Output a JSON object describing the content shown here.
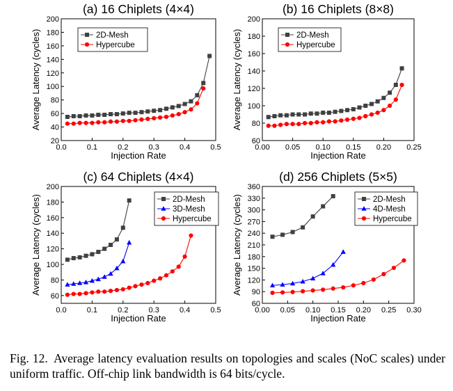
{
  "caption": {
    "label": "Fig. 12.",
    "text": "Average latency evaluation results on topologies and scales (NoC scales) under uniform traffic. Off-chip link bandwidth is 64 bits/cycle."
  },
  "chart_data": [
    {
      "type": "line",
      "title": "(a) 16 Chiplets (4×4)",
      "xlabel": "Injection Rate",
      "ylabel": "Average Latency (cycles)",
      "xlim": [
        0.0,
        0.5
      ],
      "ylim": [
        20,
        200
      ],
      "xticks": [
        0.0,
        0.1,
        0.2,
        0.3,
        0.4,
        0.5
      ],
      "xtick_labels": [
        "0.0",
        "0.1",
        "0.2",
        "0.3",
        "0.4",
        "0.5"
      ],
      "yticks": [
        20,
        40,
        60,
        80,
        100,
        120,
        140,
        160,
        180,
        200
      ],
      "ytick_labels": [
        "20",
        "40",
        "60",
        "80",
        "100",
        "120",
        "140",
        "160",
        "180",
        "200"
      ],
      "legend_position": "upper-left",
      "grid": false,
      "series": [
        {
          "name": "2D-Mesh",
          "color": "#404040",
          "marker": "square",
          "x": [
            0.02,
            0.04,
            0.06,
            0.08,
            0.1,
            0.12,
            0.14,
            0.16,
            0.18,
            0.2,
            0.22,
            0.24,
            0.26,
            0.28,
            0.3,
            0.32,
            0.34,
            0.36,
            0.38,
            0.4,
            0.42,
            0.44,
            0.46,
            0.48
          ],
          "y": [
            55,
            56,
            56,
            57,
            57,
            58,
            58,
            59,
            59,
            60,
            61,
            61,
            62,
            63,
            64,
            65,
            67,
            69,
            71,
            74,
            78,
            87,
            105,
            145
          ]
        },
        {
          "name": "Hypercube",
          "color": "#ff0000",
          "marker": "circle",
          "x": [
            0.02,
            0.04,
            0.06,
            0.08,
            0.1,
            0.12,
            0.14,
            0.16,
            0.18,
            0.2,
            0.22,
            0.24,
            0.26,
            0.28,
            0.3,
            0.32,
            0.34,
            0.36,
            0.38,
            0.4,
            0.42,
            0.44,
            0.46
          ],
          "y": [
            45,
            45,
            46,
            46,
            46,
            47,
            47,
            48,
            48,
            49,
            49,
            50,
            51,
            52,
            53,
            54,
            55,
            57,
            59,
            62,
            66,
            75,
            97
          ]
        }
      ]
    },
    {
      "type": "line",
      "title": "(b) 16 Chiplets (8×8)",
      "xlabel": "Injection Rate",
      "ylabel": "Average Latency (cycles)",
      "xlim": [
        0.0,
        0.25
      ],
      "ylim": [
        60,
        200
      ],
      "xticks": [
        0.0,
        0.05,
        0.1,
        0.15,
        0.2,
        0.25
      ],
      "xtick_labels": [
        "0.00",
        "0.05",
        "0.10",
        "0.15",
        "0.20",
        "0.25"
      ],
      "yticks": [
        60,
        80,
        100,
        120,
        140,
        160,
        180,
        200
      ],
      "ytick_labels": [
        "60",
        "80",
        "100",
        "120",
        "140",
        "160",
        "180",
        "200"
      ],
      "legend_position": "upper-left",
      "grid": false,
      "series": [
        {
          "name": "2D-Mesh",
          "color": "#404040",
          "marker": "square",
          "x": [
            0.01,
            0.02,
            0.03,
            0.04,
            0.05,
            0.06,
            0.07,
            0.08,
            0.09,
            0.1,
            0.11,
            0.12,
            0.13,
            0.14,
            0.15,
            0.16,
            0.17,
            0.18,
            0.19,
            0.2,
            0.21,
            0.22,
            0.23
          ],
          "y": [
            87,
            88,
            89,
            89,
            90,
            90,
            90,
            91,
            91,
            92,
            92,
            93,
            94,
            95,
            96,
            98,
            100,
            102,
            105,
            109,
            115,
            124,
            143
          ]
        },
        {
          "name": "Hypercube",
          "color": "#ff0000",
          "marker": "circle",
          "x": [
            0.01,
            0.02,
            0.03,
            0.04,
            0.05,
            0.06,
            0.07,
            0.08,
            0.09,
            0.1,
            0.11,
            0.12,
            0.13,
            0.14,
            0.15,
            0.16,
            0.17,
            0.18,
            0.19,
            0.2,
            0.21,
            0.22,
            0.23
          ],
          "y": [
            77,
            77,
            78,
            79,
            79,
            79,
            80,
            80,
            81,
            81,
            82,
            82,
            83,
            84,
            85,
            86,
            88,
            90,
            92,
            95,
            100,
            107,
            124
          ]
        }
      ]
    },
    {
      "type": "line",
      "title": "(c) 64 Chiplets (4×4)",
      "xlabel": "Injection Rate",
      "ylabel": "Average Latency (cycles)",
      "xlim": [
        0.0,
        0.5
      ],
      "ylim": [
        50,
        200
      ],
      "xticks": [
        0.0,
        0.1,
        0.2,
        0.3,
        0.4,
        0.5
      ],
      "xtick_labels": [
        "0.0",
        "0.1",
        "0.2",
        "0.3",
        "0.4",
        "0.5"
      ],
      "yticks": [
        60,
        80,
        100,
        120,
        140,
        160,
        180,
        200
      ],
      "ytick_labels": [
        "60",
        "80",
        "100",
        "120",
        "140",
        "160",
        "180",
        "200"
      ],
      "legend_position": "upper-right",
      "grid": false,
      "series": [
        {
          "name": "2D-Mesh",
          "color": "#404040",
          "marker": "square",
          "x": [
            0.02,
            0.04,
            0.06,
            0.08,
            0.1,
            0.12,
            0.14,
            0.16,
            0.18,
            0.2,
            0.22
          ],
          "y": [
            106,
            108,
            109,
            111,
            113,
            116,
            120,
            125,
            132,
            147,
            182
          ]
        },
        {
          "name": "3D-Mesh",
          "color": "#0000ff",
          "marker": "triangle",
          "x": [
            0.02,
            0.04,
            0.06,
            0.08,
            0.1,
            0.12,
            0.14,
            0.16,
            0.18,
            0.2,
            0.22
          ],
          "y": [
            74,
            75,
            76,
            77,
            79,
            81,
            84,
            88,
            95,
            104,
            128
          ]
        },
        {
          "name": "Hypercube",
          "color": "#ff0000",
          "marker": "circle",
          "x": [
            0.02,
            0.04,
            0.06,
            0.08,
            0.1,
            0.12,
            0.14,
            0.16,
            0.18,
            0.2,
            0.22,
            0.24,
            0.26,
            0.28,
            0.3,
            0.32,
            0.34,
            0.36,
            0.38,
            0.4,
            0.42
          ],
          "y": [
            61,
            62,
            62,
            63,
            64,
            65,
            65,
            66,
            67,
            68,
            70,
            72,
            74,
            76,
            79,
            82,
            86,
            91,
            97,
            110,
            137
          ]
        }
      ]
    },
    {
      "type": "line",
      "title": "(d) 256 Chiplets (5×5)",
      "xlabel": "Injection Rate",
      "ylabel": "Average Latency (cycles)",
      "xlim": [
        0.0,
        0.3
      ],
      "ylim": [
        60,
        360
      ],
      "xticks": [
        0.0,
        0.05,
        0.1,
        0.15,
        0.2,
        0.25,
        0.3
      ],
      "xtick_labels": [
        "0.00",
        "0.05",
        "0.10",
        "0.15",
        "0.20",
        "0.25",
        "0.30"
      ],
      "yticks": [
        60,
        90,
        120,
        150,
        180,
        210,
        240,
        270,
        300,
        330,
        360
      ],
      "ytick_labels": [
        "60",
        "90",
        "120",
        "150",
        "180",
        "210",
        "240",
        "270",
        "300",
        "330",
        "360"
      ],
      "legend_position": "upper-right",
      "grid": false,
      "series": [
        {
          "name": "2D-Mesh",
          "color": "#404040",
          "marker": "square",
          "x": [
            0.02,
            0.04,
            0.06,
            0.08,
            0.1,
            0.12,
            0.14
          ],
          "y": [
            231,
            236,
            243,
            255,
            283,
            309,
            335
          ]
        },
        {
          "name": "4D-Mesh",
          "color": "#0000ff",
          "marker": "triangle",
          "x": [
            0.02,
            0.04,
            0.06,
            0.08,
            0.1,
            0.12,
            0.14,
            0.16
          ],
          "y": [
            106,
            108,
            111,
            116,
            124,
            137,
            159,
            192
          ]
        },
        {
          "name": "Hypercube",
          "color": "#ff0000",
          "marker": "circle",
          "x": [
            0.02,
            0.04,
            0.06,
            0.08,
            0.1,
            0.12,
            0.14,
            0.16,
            0.18,
            0.2,
            0.22,
            0.24,
            0.26,
            0.28
          ],
          "y": [
            87,
            88,
            89,
            91,
            93,
            95,
            98,
            101,
            106,
            112,
            121,
            135,
            151,
            170
          ]
        }
      ]
    }
  ]
}
